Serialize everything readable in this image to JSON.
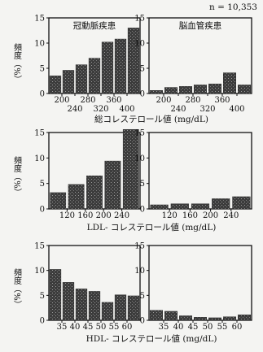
{
  "n_label": "n = 10,353",
  "ylabel": "頻度（%）",
  "colors": {
    "bar_dark": "#3c3c3c",
    "bar_light": "#5a5a5a",
    "axis": "#111111"
  },
  "chart_data": [
    {
      "type": "bar",
      "title": "冠動脈疾患",
      "ylim": [
        0,
        15
      ],
      "yticks": [
        "0",
        "5",
        "10",
        "15"
      ],
      "categories": [
        "<200",
        "200-240",
        "240-280",
        "280-320",
        "320-360",
        "360-400",
        "≥400"
      ],
      "values": [
        3.5,
        4.6,
        5.7,
        7.0,
        10.2,
        10.8,
        13.0
      ],
      "tick_labels": [
        {
          "t": "200",
          "row": 0,
          "at": 0.5
        },
        {
          "t": "240",
          "row": 1,
          "at": 1.5
        },
        {
          "t": "280",
          "row": 0,
          "at": 2.5
        },
        {
          "t": "320",
          "row": 1,
          "at": 3.5
        },
        {
          "t": "360",
          "row": 0,
          "at": 4.5
        },
        {
          "t": "400",
          "row": 1,
          "at": 5.5
        }
      ],
      "xlabel": ""
    },
    {
      "type": "bar",
      "title": "脳血管疾患",
      "ylim": [
        0,
        15
      ],
      "yticks": [
        "0",
        "5",
        "10",
        "15"
      ],
      "categories": [
        "<200",
        "200-240",
        "240-280",
        "280-320",
        "320-360",
        "360-400",
        "≥400"
      ],
      "values": [
        0.6,
        1.2,
        1.4,
        1.7,
        1.9,
        4.1,
        1.7
      ],
      "tick_labels": [
        {
          "t": "200",
          "row": 0,
          "at": 0.5
        },
        {
          "t": "240",
          "row": 1,
          "at": 1.5
        },
        {
          "t": "280",
          "row": 0,
          "at": 2.5
        },
        {
          "t": "320",
          "row": 1,
          "at": 3.5
        },
        {
          "t": "360",
          "row": 0,
          "at": 4.5
        },
        {
          "t": "400",
          "row": 1,
          "at": 5.5
        }
      ],
      "xlabel": "総コレステロール値 (mg/dL)"
    },
    {
      "type": "bar",
      "title": "",
      "ylim": [
        0,
        15
      ],
      "yticks": [
        "0",
        "5",
        "10",
        "15"
      ],
      "categories": [
        "<120",
        "120-160",
        "160-200",
        "200-240",
        "≥240"
      ],
      "values": [
        3.2,
        4.8,
        6.5,
        9.4,
        15.6
      ],
      "tick_labels": [
        {
          "t": "120",
          "row": 0,
          "at": 0.5
        },
        {
          "t": "160",
          "row": 0,
          "at": 1.5
        },
        {
          "t": "200",
          "row": 0,
          "at": 2.5
        },
        {
          "t": "240",
          "row": 0,
          "at": 3.5
        }
      ],
      "xlabel": ""
    },
    {
      "type": "bar",
      "title": "",
      "ylim": [
        0,
        15
      ],
      "yticks": [
        "0",
        "5",
        "10",
        "15"
      ],
      "categories": [
        "<120",
        "120-160",
        "160-200",
        "200-240",
        "≥240"
      ],
      "values": [
        0.8,
        1.0,
        1.0,
        2.0,
        2.4
      ],
      "tick_labels": [
        {
          "t": "120",
          "row": 0,
          "at": 0.5
        },
        {
          "t": "160",
          "row": 0,
          "at": 1.5
        },
        {
          "t": "200",
          "row": 0,
          "at": 2.5
        },
        {
          "t": "240",
          "row": 0,
          "at": 3.5
        }
      ],
      "xlabel": "LDL- コレステロール値 (mg/dL)"
    },
    {
      "type": "bar",
      "title": "",
      "ylim": [
        0,
        15
      ],
      "yticks": [
        "0",
        "5",
        "10",
        "15"
      ],
      "categories": [
        "<35",
        "35-40",
        "40-45",
        "45-50",
        "50-55",
        "55-60",
        "≥60"
      ],
      "values": [
        10.2,
        7.6,
        6.3,
        5.8,
        3.6,
        5.1,
        4.9
      ],
      "tick_labels": [
        {
          "t": "35",
          "row": 0,
          "at": 0.5
        },
        {
          "t": "40",
          "row": 0,
          "at": 1.5
        },
        {
          "t": "45",
          "row": 0,
          "at": 2.5
        },
        {
          "t": "50",
          "row": 0,
          "at": 3.5
        },
        {
          "t": "55",
          "row": 0,
          "at": 4.5
        },
        {
          "t": "60",
          "row": 0,
          "at": 5.5
        }
      ],
      "xlabel": ""
    },
    {
      "type": "bar",
      "title": "",
      "ylim": [
        0,
        15
      ],
      "yticks": [
        "0",
        "5",
        "10",
        "15"
      ],
      "categories": [
        "<35",
        "35-40",
        "40-45",
        "45-50",
        "50-55",
        "55-60",
        "≥60"
      ],
      "values": [
        2.0,
        1.8,
        0.9,
        0.6,
        0.5,
        0.7,
        1.1
      ],
      "tick_labels": [
        {
          "t": "35",
          "row": 0,
          "at": 0.5
        },
        {
          "t": "40",
          "row": 0,
          "at": 1.5
        },
        {
          "t": "45",
          "row": 0,
          "at": 2.5
        },
        {
          "t": "50",
          "row": 0,
          "at": 3.5
        },
        {
          "t": "55",
          "row": 0,
          "at": 4.5
        },
        {
          "t": "60",
          "row": 0,
          "at": 5.5
        }
      ],
      "xlabel": "HDL- コレステロール値 (mg/dL)"
    }
  ]
}
